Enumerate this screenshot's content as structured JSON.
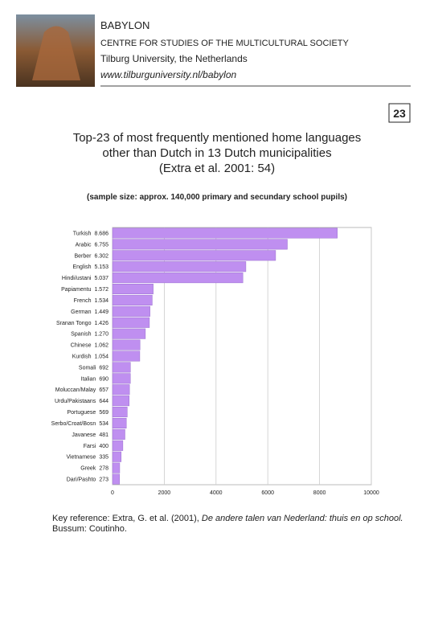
{
  "header": {
    "org": "BABYLON",
    "centre": "CENTRE FOR STUDIES OF THE MULTICULTURAL SOCIETY",
    "university": "Tilburg University, the Netherlands",
    "url": "www.tilburguniversity.nl/babylon"
  },
  "page_number": "23",
  "title_lines": [
    "Top-23 of most frequently mentioned home languages",
    "other than Dutch in 13 Dutch municipalities",
    "(Extra et al. 2001: 54)"
  ],
  "subtitle": "(sample size: approx. 140,000 primary and secundary school pupils)",
  "chart_data": {
    "type": "bar",
    "orientation": "horizontal",
    "categories": [
      "Turkish",
      "Arabic",
      "Berber",
      "English",
      "Hindi/ustani",
      "Papiamentu",
      "French",
      "German",
      "Sranan Tongo",
      "Spanish",
      "Chinese",
      "Kurdish",
      "Somali",
      "Italian",
      "Moluccan/Malay",
      "Urdu/Pakistaans",
      "Portuguese",
      "Serbo/Croat/Bosn",
      "Javanese",
      "Farsi",
      "Vietnamese",
      "Greek",
      "Dari/Pashto"
    ],
    "values": [
      8686,
      6755,
      6302,
      5153,
      5037,
      1572,
      1534,
      1449,
      1426,
      1270,
      1062,
      1054,
      692,
      690,
      657,
      644,
      569,
      534,
      481,
      400,
      335,
      278,
      273
    ],
    "value_labels": [
      "8.686",
      "6.755",
      "6.302",
      "5.153",
      "5.037",
      "1.572",
      "1.534",
      "1.449",
      "1.426",
      "1.270",
      "1.062",
      "1.054",
      "692",
      "690",
      "657",
      "644",
      "569",
      "534",
      "481",
      "400",
      "335",
      "278",
      "273"
    ],
    "color": "#bf8ff0",
    "xlim": [
      0,
      10000
    ],
    "xticks": [
      0,
      2000,
      4000,
      6000,
      8000,
      10000
    ],
    "grid": true
  },
  "key_reference": {
    "lead": "Key reference: Extra, G. et al. (2001), ",
    "book": "De andere talen van Nederland: thuis en op school.",
    "publisher": "Bussum: Coutinho."
  }
}
